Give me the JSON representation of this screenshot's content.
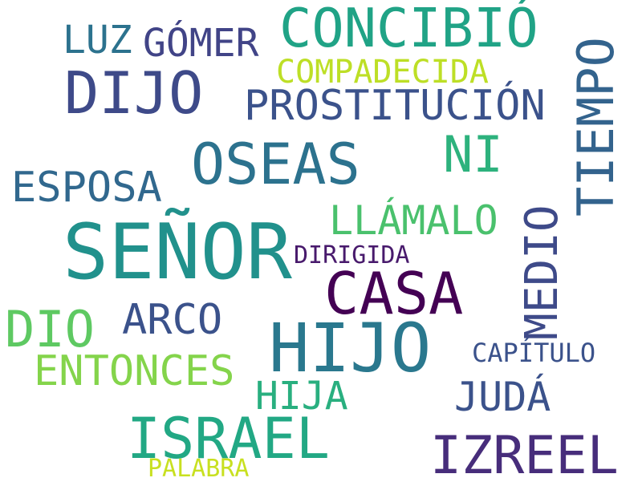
{
  "words": [
    {
      "id": "senor",
      "text": "SEÑOR",
      "color": "#21918c"
    },
    {
      "id": "hijo",
      "text": "HIJO",
      "color": "#2a788e"
    },
    {
      "id": "casa",
      "text": "CASA",
      "color": "#440154"
    },
    {
      "id": "izreel",
      "text": "IZREEL",
      "color": "#472d7b"
    },
    {
      "id": "israel",
      "text": "ISRAEL",
      "color": "#22a884"
    },
    {
      "id": "oseas",
      "text": "OSEAS",
      "color": "#2c728e"
    },
    {
      "id": "concibio",
      "text": "CONCIBIÓ",
      "color": "#20a386"
    },
    {
      "id": "dijo",
      "text": "DIJO",
      "color": "#3e4a89"
    },
    {
      "id": "tiempo",
      "text": "TIEMPO",
      "color": "#33638d"
    },
    {
      "id": "medio",
      "text": "MEDIO",
      "color": "#3e4a89"
    },
    {
      "id": "prostitucion",
      "text": "PROSTITUCIÓN",
      "color": "#3b528b"
    },
    {
      "id": "ni",
      "text": "NI",
      "color": "#2db27d"
    },
    {
      "id": "esposa",
      "text": "ESPOSA",
      "color": "#31688e"
    },
    {
      "id": "llamalo",
      "text": "LLÁMALO",
      "color": "#4ac16d"
    },
    {
      "id": "dio",
      "text": "DIO",
      "color": "#5ec962"
    },
    {
      "id": "entonces",
      "text": "ENTONCES",
      "color": "#84d44b"
    },
    {
      "id": "arco",
      "text": "ARCO",
      "color": "#3b528b"
    },
    {
      "id": "hija",
      "text": "HIJA",
      "color": "#29af7f"
    },
    {
      "id": "juda",
      "text": "JUDÁ",
      "color": "#3b528b"
    },
    {
      "id": "gomer",
      "text": "GÓMER",
      "color": "#414487"
    },
    {
      "id": "luz",
      "text": "LUZ",
      "color": "#2c728e"
    },
    {
      "id": "compadecida",
      "text": "COMPADECIDA",
      "color": "#bddf26"
    },
    {
      "id": "dirigida",
      "text": "DIRIGIDA",
      "color": "#481a6c"
    },
    {
      "id": "capitulo",
      "text": "CAPÍTULO",
      "color": "#3b528b"
    },
    {
      "id": "palabra",
      "text": "PALABRA",
      "color": "#c8e020"
    }
  ]
}
